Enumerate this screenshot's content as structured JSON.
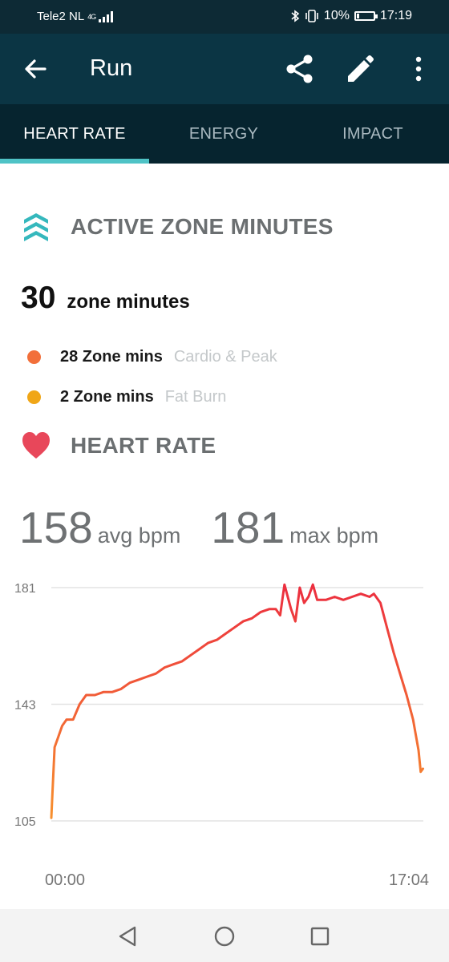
{
  "status_bar": {
    "carrier": "Tele2 NL",
    "network": "4G",
    "battery": "10%",
    "time": "17:19"
  },
  "app_bar": {
    "title": "Run",
    "icons": [
      "back-arrow-icon",
      "share-icon",
      "edit-pencil-icon",
      "more-vert-icon"
    ]
  },
  "tabs": [
    {
      "label": "HEART RATE",
      "active": true
    },
    {
      "label": "ENERGY",
      "active": false
    },
    {
      "label": "IMPACT",
      "active": false
    }
  ],
  "active_zone_minutes": {
    "heading": "ACTIVE ZONE MINUTES",
    "total": "30",
    "total_unit": "zone minutes",
    "zones": [
      {
        "value": "28 Zone mins",
        "label": "Cardio & Peak",
        "color": "#f26f3a"
      },
      {
        "value": "2 Zone mins",
        "label": "Fat Burn",
        "color": "#f0a617"
      }
    ]
  },
  "heart_rate": {
    "heading": "HEART RATE",
    "avg": "158",
    "avg_unit": "avg bpm",
    "max": "181",
    "max_unit": "max bpm"
  },
  "colors": {
    "accent": "#4fc3c6",
    "app_bar": "#0b3544",
    "tab_bar": "#06242f",
    "heart": "#e8475a",
    "line_low": "#f7912e",
    "line_high": "#ec2f3f"
  },
  "chart_data": {
    "type": "line",
    "y_ticks": [
      "181",
      "143",
      "105"
    ],
    "x_ticks": [
      "00:00",
      "17:04"
    ],
    "ylim": [
      105,
      181
    ],
    "x_range_minutes": [
      0,
      17.07
    ],
    "grid": true,
    "series": [
      {
        "x": [
          0,
          0.05,
          0.15,
          0.3,
          0.5,
          0.7,
          1.0,
          1.3,
          1.6,
          2.0,
          2.4,
          2.8,
          3.2,
          3.6,
          4.0,
          4.4,
          4.8,
          5.2,
          5.6,
          6.0,
          6.4,
          6.8,
          7.2,
          7.6,
          8.0,
          8.4,
          8.8,
          9.2,
          9.6,
          10.0,
          10.3,
          10.5,
          10.7,
          11.0,
          11.2,
          11.4,
          11.6,
          11.8,
          12.0,
          12.2,
          12.6,
          13.0,
          13.4,
          13.8,
          14.2,
          14.6,
          14.8,
          15.1,
          15.4,
          15.7,
          16.0,
          16.3,
          16.6,
          16.85,
          16.95,
          17.05
        ],
        "values": [
          106,
          114,
          129,
          132,
          136,
          138,
          138,
          143,
          146,
          146,
          147,
          147,
          148,
          150,
          151,
          152,
          153,
          155,
          156,
          157,
          159,
          161,
          163,
          164,
          166,
          168,
          170,
          171,
          173,
          174,
          174,
          172,
          182,
          174,
          170,
          181,
          176,
          178,
          182,
          177,
          177,
          178,
          177,
          178,
          179,
          178,
          179,
          176,
          168,
          160,
          153,
          146,
          138,
          128,
          121,
          122
        ]
      }
    ]
  },
  "nav_bar": {
    "icons": [
      "back-triangle-icon",
      "home-circle-icon",
      "recents-square-icon"
    ]
  }
}
